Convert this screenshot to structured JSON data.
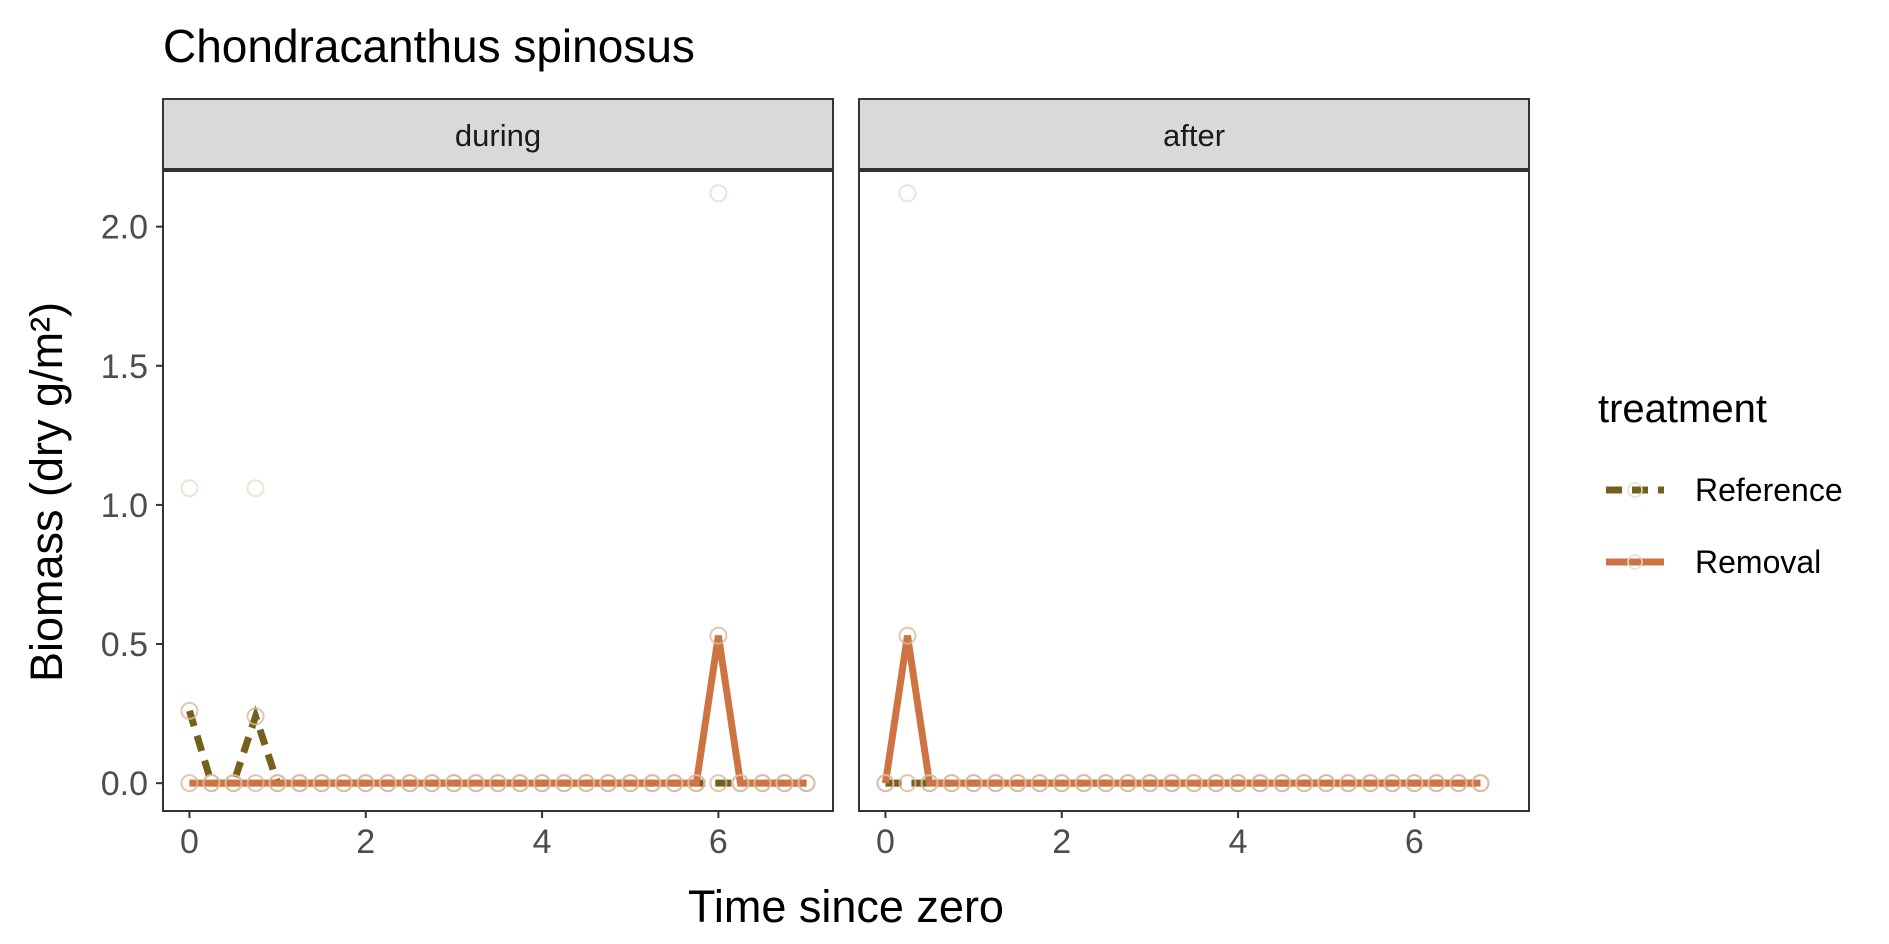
{
  "chart_data": {
    "type": "line",
    "title": "Chondracanthus spinosus",
    "xlabel": "Time since zero",
    "ylabel": "Biomass (dry g/m²)",
    "ylim": [
      -0.1,
      2.2
    ],
    "y_ticks": [
      0.0,
      0.5,
      1.0,
      1.5,
      2.0
    ],
    "y_tick_labels": [
      "0.0",
      "0.5",
      "1.0",
      "1.5",
      "2.0"
    ],
    "x_ticks": [
      0,
      2,
      4,
      6
    ],
    "x_tick_labels": [
      "0",
      "2",
      "4",
      "6"
    ],
    "grid": false,
    "legend": {
      "title": "treatment",
      "placement": "right",
      "entries": [
        {
          "label": "Reference",
          "color": "#74601b",
          "dash": "dashed"
        },
        {
          "label": "Removal",
          "color": "#cd7442",
          "dash": "solid"
        }
      ]
    },
    "panels": [
      {
        "label": "during",
        "xlim": [
          -0.3,
          7.3
        ],
        "series": [
          {
            "name": "Reference",
            "color": "#74601b",
            "dash": "dashed",
            "x": [
              0,
              0.25,
              0.5,
              0.75,
              1.0,
              1.25,
              1.5,
              1.75,
              2.0,
              2.25,
              2.5,
              2.75,
              3.0,
              3.25,
              3.5,
              3.75,
              4.0,
              4.25,
              4.5,
              4.75,
              5.0,
              5.25,
              5.5,
              5.75,
              6.0,
              6.25,
              6.5,
              6.75,
              7.0
            ],
            "y": [
              0.26,
              0,
              0,
              0.24,
              0,
              0,
              0,
              0,
              0,
              0,
              0,
              0,
              0,
              0,
              0,
              0,
              0,
              0,
              0,
              0,
              0,
              0,
              0,
              0,
              0,
              0,
              0,
              0,
              0
            ]
          },
          {
            "name": "Removal",
            "color": "#cd7442",
            "dash": "solid",
            "x": [
              0,
              0.25,
              0.5,
              0.75,
              1.0,
              1.25,
              1.5,
              1.75,
              2.0,
              2.25,
              2.5,
              2.75,
              3.0,
              3.25,
              3.5,
              3.75,
              4.0,
              4.25,
              4.5,
              4.75,
              5.0,
              5.25,
              5.5,
              5.75,
              6.0,
              6.25,
              6.5,
              6.75,
              7.0
            ],
            "y": [
              0,
              0,
              0,
              0,
              0,
              0,
              0,
              0,
              0,
              0,
              0,
              0,
              0,
              0,
              0,
              0,
              0,
              0,
              0,
              0,
              0,
              0,
              0,
              0,
              0.53,
              0,
              0,
              0,
              0
            ]
          }
        ],
        "faint_points": [
          {
            "x": 0,
            "y": 1.06
          },
          {
            "x": 0.75,
            "y": 1.06
          },
          {
            "x": 6.0,
            "y": 2.12
          }
        ]
      },
      {
        "label": "after",
        "xlim": [
          -0.3,
          7.3
        ],
        "series": [
          {
            "name": "Reference",
            "color": "#74601b",
            "dash": "dashed",
            "x": [
              0,
              0.25,
              0.5,
              0.75,
              1.0,
              1.25,
              1.5,
              1.75,
              2.0,
              2.25,
              2.5,
              2.75,
              3.0,
              3.25,
              3.5,
              3.75,
              4.0,
              4.25,
              4.5,
              4.75,
              5.0,
              5.25,
              5.5,
              5.75,
              6.0,
              6.25,
              6.5,
              6.75
            ],
            "y": [
              0,
              0,
              0,
              0,
              0,
              0,
              0,
              0,
              0,
              0,
              0,
              0,
              0,
              0,
              0,
              0,
              0,
              0,
              0,
              0,
              0,
              0,
              0,
              0,
              0,
              0,
              0,
              0
            ]
          },
          {
            "name": "Removal",
            "color": "#cd7442",
            "dash": "solid",
            "x": [
              0,
              0.25,
              0.5,
              0.75,
              1.0,
              1.25,
              1.5,
              1.75,
              2.0,
              2.25,
              2.5,
              2.75,
              3.0,
              3.25,
              3.5,
              3.75,
              4.0,
              4.25,
              4.5,
              4.75,
              5.0,
              5.25,
              5.5,
              5.75,
              6.0,
              6.25,
              6.5,
              6.75
            ],
            "y": [
              0,
              0.53,
              0,
              0,
              0,
              0,
              0,
              0,
              0,
              0,
              0,
              0,
              0,
              0,
              0,
              0,
              0,
              0,
              0,
              0,
              0,
              0,
              0,
              0,
              0,
              0,
              0,
              0
            ]
          }
        ],
        "faint_points": [
          {
            "x": 0.25,
            "y": 2.12
          }
        ]
      }
    ]
  }
}
